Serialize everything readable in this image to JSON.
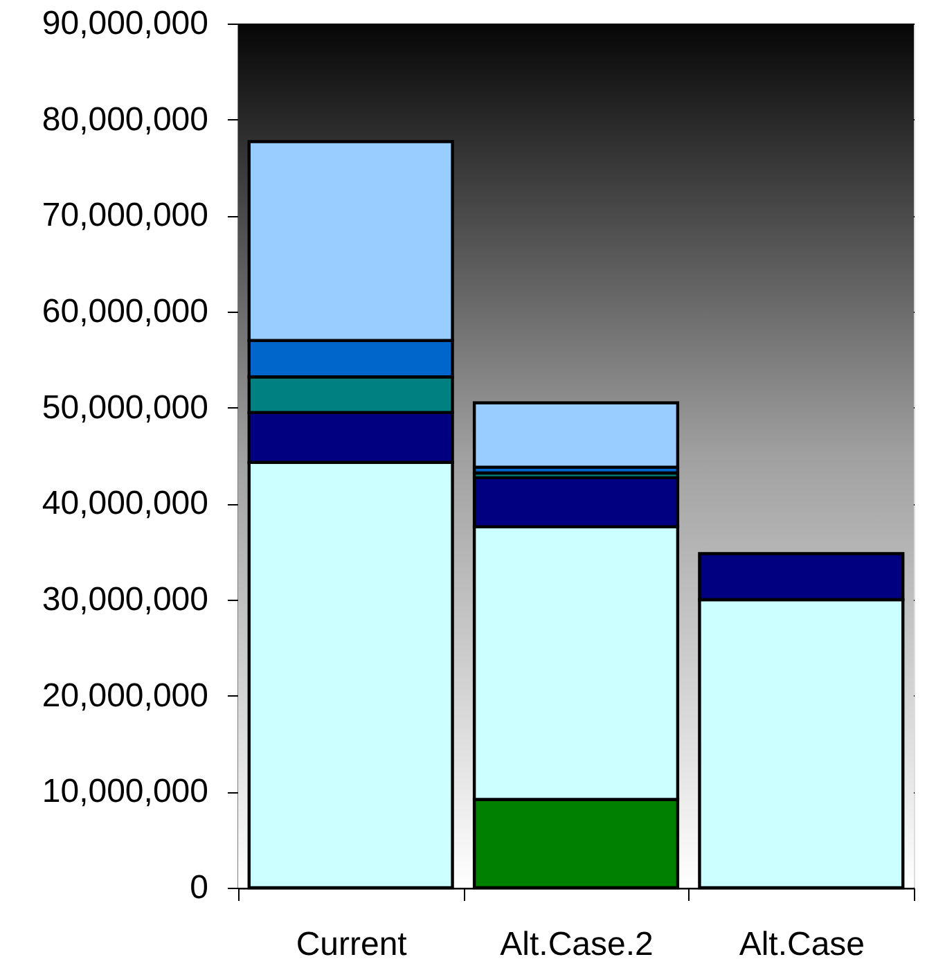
{
  "chart_data": {
    "type": "bar",
    "stacked": true,
    "categories": [
      "Current",
      "Alt.Case.2",
      "Alt.Case"
    ],
    "series": [
      {
        "color": "#008000",
        "values": [
          null,
          9200000,
          null
        ]
      },
      {
        "color": "#ccffff",
        "values": [
          44300000,
          28400000,
          30000000
        ]
      },
      {
        "color": "#000080",
        "values": [
          5200000,
          5100000,
          4800000
        ]
      },
      {
        "color": "#008080",
        "values": [
          3700000,
          500000,
          null
        ]
      },
      {
        "color": "#0066cc",
        "values": [
          3800000,
          600000,
          null
        ]
      },
      {
        "color": "#99ccff",
        "values": [
          20700000,
          6700000,
          null
        ]
      }
    ],
    "ylim": [
      0,
      90000000
    ],
    "yticks": [
      0,
      {
        "value": 10000000,
        "label": "10,000,000"
      },
      {
        "value": 20000000,
        "label": "20,000,000"
      },
      {
        "value": 30000000,
        "label": "30,000,000"
      },
      {
        "value": 40000000,
        "label": "40,000,000"
      },
      {
        "value": 50000000,
        "label": "50,000,000"
      },
      {
        "value": 60000000,
        "label": "60,000,000"
      },
      {
        "value": 70000000,
        "label": "70,000,000"
      },
      {
        "value": 80000000,
        "label": "80,000,000"
      },
      {
        "value": 90000000,
        "label": "90,000,000"
      }
    ],
    "grid": "y"
  }
}
